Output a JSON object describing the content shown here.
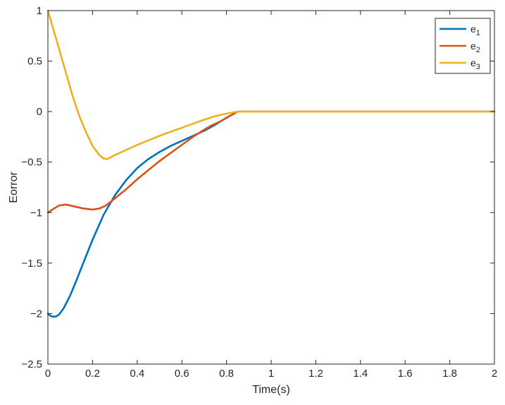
{
  "chart_data": {
    "type": "line",
    "title": "",
    "xlabel": "Time(s)",
    "ylabel": "Eorror",
    "xlim": [
      0,
      2
    ],
    "ylim": [
      -2.5,
      1
    ],
    "xticks": [
      0,
      0.2,
      0.4,
      0.6,
      0.8,
      1,
      1.2,
      1.4,
      1.6,
      1.8,
      2
    ],
    "xtick_labels": [
      "0",
      "0.2",
      "0.4",
      "0.6",
      "0.8",
      "1",
      "1.2",
      "1.4",
      "1.6",
      "1.8",
      "2"
    ],
    "yticks": [
      1,
      0.5,
      0,
      -0.5,
      -1,
      -1.5,
      -2,
      -2.5
    ],
    "ytick_labels": [
      "1",
      "0.5",
      "0",
      "−0.5",
      "−1",
      "−1.5",
      "−2",
      "−2.5"
    ],
    "grid": false,
    "legend_position": "top-right",
    "series": [
      {
        "name": "e1",
        "label_base": "e",
        "label_sub": "1",
        "color": "#0072BD",
        "x": [
          0,
          0.01,
          0.02,
          0.035,
          0.05,
          0.07,
          0.1,
          0.13,
          0.16,
          0.2,
          0.25,
          0.3,
          0.35,
          0.4,
          0.45,
          0.5,
          0.55,
          0.6,
          0.65,
          0.7,
          0.75,
          0.8,
          0.85,
          0.9,
          1.0,
          1.2,
          1.4,
          1.6,
          1.8,
          2.0
        ],
        "y": [
          -2.0,
          -2.02,
          -2.03,
          -2.03,
          -2.01,
          -1.95,
          -1.82,
          -1.66,
          -1.49,
          -1.27,
          -1.02,
          -0.83,
          -0.68,
          -0.56,
          -0.47,
          -0.4,
          -0.34,
          -0.29,
          -0.24,
          -0.19,
          -0.13,
          -0.06,
          0,
          0,
          0,
          0,
          0,
          0,
          0,
          0
        ]
      },
      {
        "name": "e2",
        "label_base": "e",
        "label_sub": "2",
        "color": "#D95319",
        "x": [
          0,
          0.02,
          0.05,
          0.08,
          0.12,
          0.16,
          0.2,
          0.23,
          0.26,
          0.3,
          0.35,
          0.4,
          0.45,
          0.5,
          0.55,
          0.6,
          0.65,
          0.7,
          0.73,
          0.77,
          0.81,
          0.85,
          0.9,
          1.0,
          1.2,
          1.4,
          1.6,
          1.8,
          2.0
        ],
        "y": [
          -1.0,
          -0.97,
          -0.93,
          -0.92,
          -0.94,
          -0.96,
          -0.97,
          -0.96,
          -0.93,
          -0.86,
          -0.77,
          -0.67,
          -0.58,
          -0.49,
          -0.41,
          -0.33,
          -0.25,
          -0.18,
          -0.14,
          -0.1,
          -0.05,
          0,
          0,
          0,
          0,
          0,
          0,
          0,
          0
        ]
      },
      {
        "name": "e3",
        "label_base": "e",
        "label_sub": "3",
        "color": "#EDB120",
        "x": [
          0,
          0.02,
          0.05,
          0.08,
          0.11,
          0.14,
          0.17,
          0.2,
          0.23,
          0.25,
          0.265,
          0.28,
          0.3,
          0.35,
          0.4,
          0.45,
          0.5,
          0.55,
          0.6,
          0.65,
          0.7,
          0.75,
          0.8,
          0.85,
          0.9,
          1.0,
          1.2,
          1.4,
          1.6,
          1.8,
          2.0
        ],
        "y": [
          1.0,
          0.85,
          0.62,
          0.39,
          0.16,
          -0.04,
          -0.2,
          -0.34,
          -0.43,
          -0.465,
          -0.47,
          -0.455,
          -0.43,
          -0.38,
          -0.33,
          -0.285,
          -0.24,
          -0.2,
          -0.16,
          -0.12,
          -0.08,
          -0.045,
          -0.02,
          0,
          0,
          0,
          0,
          0,
          0,
          0,
          0
        ]
      }
    ]
  }
}
